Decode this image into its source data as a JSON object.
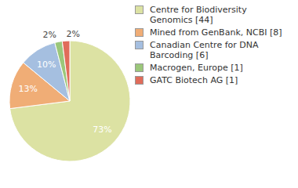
{
  "chart_data": {
    "type": "pie",
    "categories": [
      "Centre for Biodiversity Genomics [44]",
      "Mined from GenBank, NCBI [8]",
      "Canadian Centre for DNA Barcoding [6]",
      "Macrogen, Europe [1]",
      "GATC Biotech AG [1]"
    ],
    "values": [
      73,
      13,
      10,
      2,
      2
    ],
    "value_labels": [
      "73%",
      "13%",
      "10%",
      "2%",
      "2%"
    ],
    "colors": [
      "#dce2a3",
      "#f0ad76",
      "#a5bfe0",
      "#9bc77a",
      "#e06c5a"
    ],
    "data_labels": true,
    "legend": "right"
  }
}
